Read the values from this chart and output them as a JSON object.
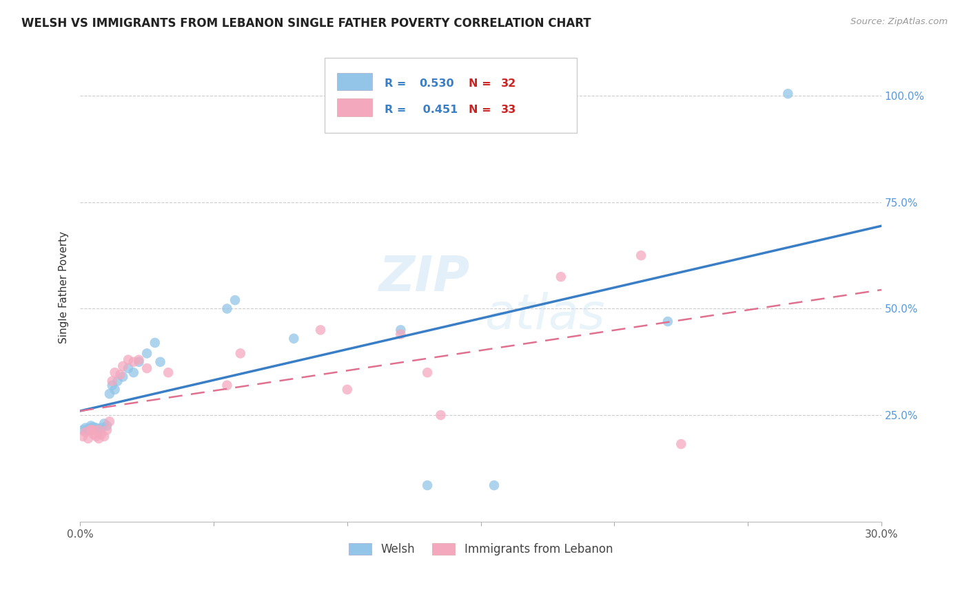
{
  "title": "WELSH VS IMMIGRANTS FROM LEBANON SINGLE FATHER POVERTY CORRELATION CHART",
  "source": "Source: ZipAtlas.com",
  "ylabel": "Single Father Poverty",
  "legend_label1": "Welsh",
  "legend_label2": "Immigrants from Lebanon",
  "R1": 0.53,
  "N1": 32,
  "R2": 0.451,
  "N2": 33,
  "color_welsh": "#92C5E8",
  "color_lebanon": "#F4A8BE",
  "color_welsh_line": "#3A7EC6",
  "color_lebanon_line": "#E07090",
  "welsh_x": [
    0.001,
    0.002,
    0.003,
    0.003,
    0.004,
    0.004,
    0.005,
    0.005,
    0.006,
    0.007,
    0.008,
    0.009,
    0.01,
    0.011,
    0.012,
    0.013,
    0.014,
    0.016,
    0.018,
    0.02,
    0.022,
    0.025,
    0.028,
    0.03,
    0.055,
    0.058,
    0.08,
    0.12,
    0.13,
    0.155,
    0.22,
    0.265
  ],
  "welsh_y": [
    0.215,
    0.22,
    0.215,
    0.218,
    0.225,
    0.22,
    0.218,
    0.222,
    0.22,
    0.215,
    0.22,
    0.23,
    0.225,
    0.3,
    0.32,
    0.31,
    0.33,
    0.34,
    0.36,
    0.35,
    0.375,
    0.395,
    0.42,
    0.375,
    0.5,
    0.52,
    0.43,
    0.45,
    0.085,
    0.085,
    0.47,
    1.005
  ],
  "lebanon_x": [
    0.001,
    0.002,
    0.003,
    0.004,
    0.004,
    0.005,
    0.005,
    0.006,
    0.007,
    0.007,
    0.008,
    0.009,
    0.01,
    0.011,
    0.012,
    0.013,
    0.015,
    0.016,
    0.018,
    0.02,
    0.022,
    0.025,
    0.033,
    0.055,
    0.06,
    0.09,
    0.1,
    0.12,
    0.13,
    0.135,
    0.18,
    0.21,
    0.225
  ],
  "lebanon_y": [
    0.2,
    0.21,
    0.195,
    0.215,
    0.215,
    0.205,
    0.215,
    0.2,
    0.195,
    0.215,
    0.205,
    0.2,
    0.215,
    0.235,
    0.33,
    0.35,
    0.345,
    0.365,
    0.38,
    0.375,
    0.38,
    0.36,
    0.35,
    0.32,
    0.395,
    0.45,
    0.31,
    0.44,
    0.35,
    0.25,
    0.575,
    0.625,
    0.182
  ],
  "xlim": [
    0.0,
    0.3
  ],
  "ylim": [
    0.0,
    1.1
  ],
  "y_ticks": [
    0.0,
    0.25,
    0.5,
    0.75,
    1.0
  ],
  "x_tick_positions": [
    0.0,
    0.05,
    0.1,
    0.15,
    0.2,
    0.25,
    0.3
  ],
  "x_minor_ticks": [
    0.0,
    0.05,
    0.1,
    0.15,
    0.2,
    0.25,
    0.3
  ]
}
